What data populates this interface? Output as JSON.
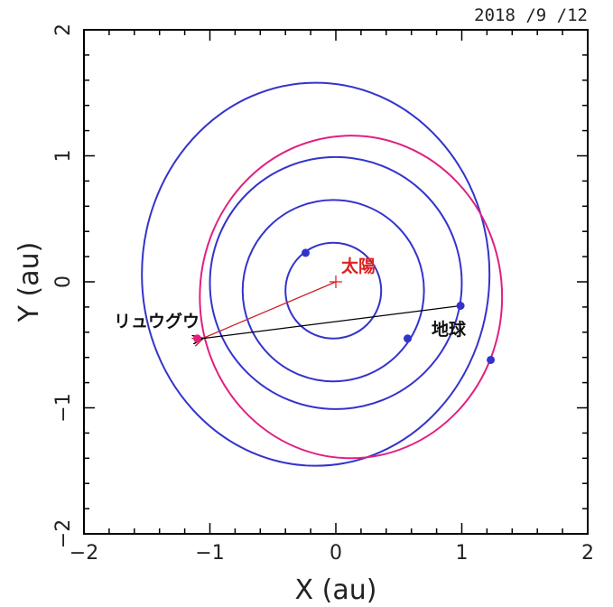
{
  "chart_data": {
    "type": "scatter",
    "date": "2018 /9 /12",
    "xlabel": "X (au)",
    "ylabel": "Y (au)",
    "xlim": [
      -2,
      2
    ],
    "ylim": [
      -2,
      2
    ],
    "x_ticks": [
      -2,
      -1,
      0,
      1,
      2
    ],
    "y_ticks": [
      -2,
      -1,
      0,
      1,
      2
    ],
    "x_tick_labels": [
      "−2",
      "−1",
      "0",
      "1",
      "2"
    ],
    "y_tick_labels": [
      "−2",
      "−1",
      "0",
      "1",
      "2"
    ],
    "orbits": [
      {
        "cx": -0.02,
        "cy": -0.07,
        "rx": 0.38,
        "ry": 0.38,
        "color": "#3333cc"
      },
      {
        "cx": -0.02,
        "cy": -0.07,
        "rx": 0.72,
        "ry": 0.72,
        "color": "#3333cc"
      },
      {
        "cx": 0.0,
        "cy": -0.01,
        "rx": 1.0,
        "ry": 1.0,
        "color": "#3333cc"
      },
      {
        "cx": -0.16,
        "cy": 0.06,
        "rx": 1.38,
        "ry": 1.52,
        "color": "#3333cc"
      },
      {
        "cx": 0.12,
        "cy": -0.12,
        "rx": 1.2,
        "ry": 1.28,
        "color": "#e0207f"
      }
    ],
    "planets": [
      {
        "x": -0.24,
        "y": 0.23,
        "color": "#3333cc"
      },
      {
        "x": 0.57,
        "y": -0.45,
        "color": "#3333cc"
      },
      {
        "x": 0.99,
        "y": -0.19,
        "color": "#3333cc"
      },
      {
        "x": 1.23,
        "y": -0.62,
        "color": "#3333cc"
      },
      {
        "x": -1.1,
        "y": -0.45,
        "color": "#e0207f"
      }
    ],
    "sun": {
      "x": 0.0,
      "y": 0.0,
      "label": "太陽",
      "color": "#dd2222"
    },
    "earth_label": "地球",
    "ryugu_label": "リュウグウ",
    "arrows": [
      {
        "from": [
          0.0,
          0.0
        ],
        "to": [
          -1.06,
          -0.45
        ],
        "color": "#cc2222"
      },
      {
        "from": [
          0.99,
          -0.19
        ],
        "to": [
          -1.06,
          -0.45
        ],
        "color": "#000000"
      }
    ]
  }
}
